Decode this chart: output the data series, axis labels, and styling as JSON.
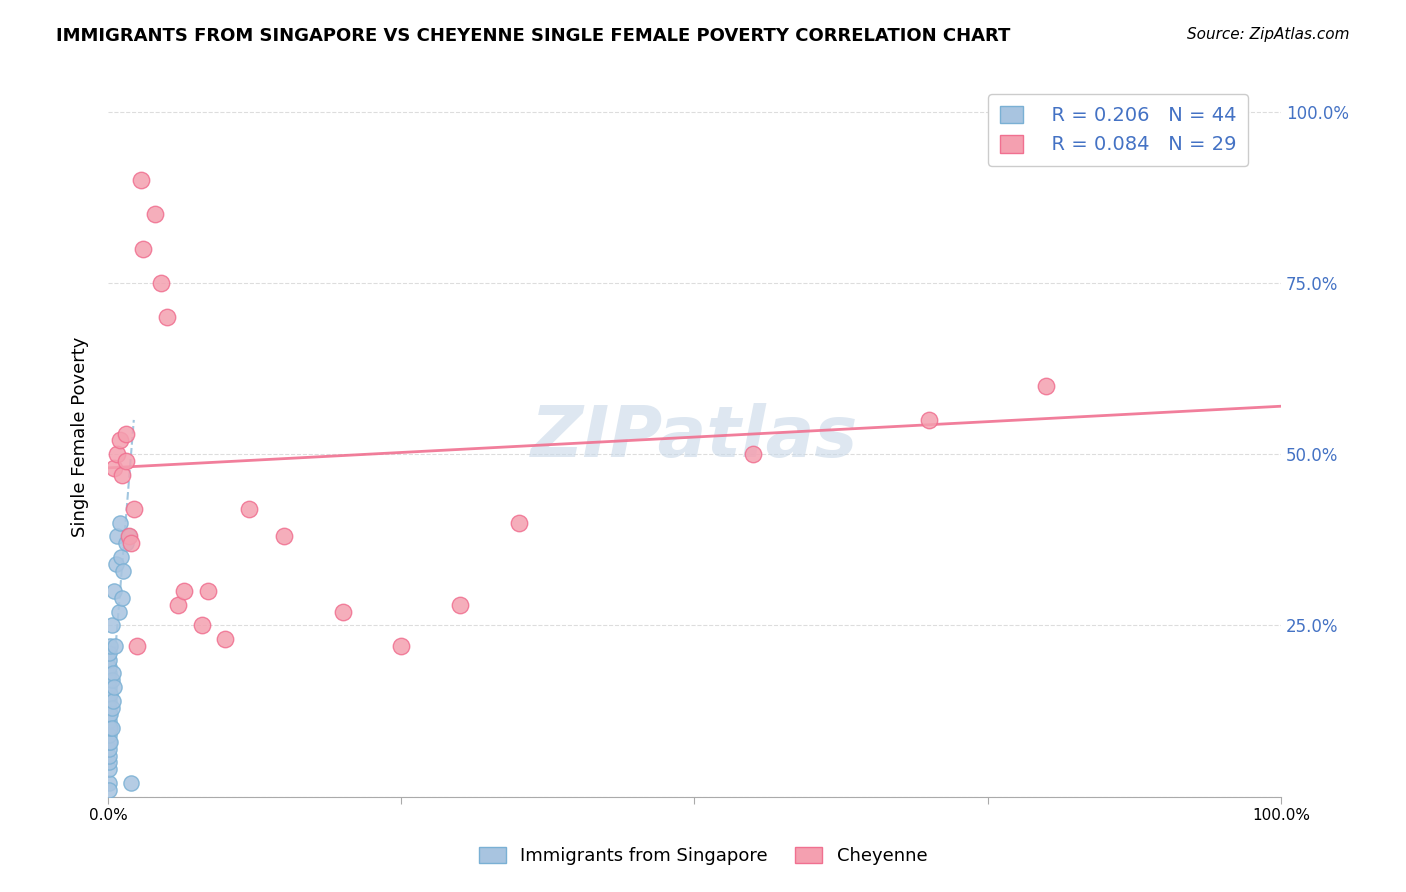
{
  "title": "IMMIGRANTS FROM SINGAPORE VS CHEYENNE SINGLE FEMALE POVERTY CORRELATION CHART",
  "source": "Source: ZipAtlas.com",
  "ylabel": "Single Female Poverty",
  "legend_blue_R": "R = 0.206",
  "legend_blue_N": "N = 44",
  "legend_pink_R": "R = 0.084",
  "legend_pink_N": "N = 29",
  "blue_color": "#a8c4e0",
  "pink_color": "#f4a0b0",
  "blue_edge_color": "#7ab0d4",
  "pink_edge_color": "#f07090",
  "blue_trend_color": "#8ab8d8",
  "pink_trend_color": "#f07090",
  "watermark": "ZIPatlas",
  "watermark_color": "#c8d8e8",
  "legend_text_color": "#4472c4",
  "right_axis_color": "#4472c4",
  "blue_points_x": [
    0.001,
    0.001,
    0.001,
    0.001,
    0.001,
    0.001,
    0.001,
    0.001,
    0.001,
    0.001,
    0.001,
    0.001,
    0.001,
    0.001,
    0.001,
    0.001,
    0.001,
    0.001,
    0.001,
    0.001,
    0.002,
    0.002,
    0.002,
    0.002,
    0.002,
    0.003,
    0.003,
    0.003,
    0.003,
    0.004,
    0.004,
    0.005,
    0.005,
    0.006,
    0.007,
    0.008,
    0.009,
    0.01,
    0.011,
    0.012,
    0.013,
    0.015,
    0.018,
    0.02
  ],
  "blue_points_y": [
    0.02,
    0.04,
    0.05,
    0.06,
    0.07,
    0.08,
    0.09,
    0.1,
    0.11,
    0.12,
    0.13,
    0.14,
    0.15,
    0.16,
    0.17,
    0.18,
    0.19,
    0.2,
    0.21,
    0.01,
    0.08,
    0.1,
    0.12,
    0.15,
    0.22,
    0.1,
    0.13,
    0.17,
    0.25,
    0.14,
    0.18,
    0.16,
    0.3,
    0.22,
    0.34,
    0.38,
    0.27,
    0.4,
    0.35,
    0.29,
    0.33,
    0.37,
    0.38,
    0.02
  ],
  "pink_points_x": [
    0.005,
    0.008,
    0.01,
    0.012,
    0.015,
    0.015,
    0.018,
    0.02,
    0.022,
    0.025,
    0.028,
    0.03,
    0.04,
    0.045,
    0.05,
    0.06,
    0.065,
    0.08,
    0.085,
    0.1,
    0.12,
    0.15,
    0.2,
    0.25,
    0.3,
    0.35,
    0.55,
    0.7,
    0.8
  ],
  "pink_points_y": [
    0.48,
    0.5,
    0.52,
    0.47,
    0.49,
    0.53,
    0.38,
    0.37,
    0.42,
    0.22,
    0.9,
    0.8,
    0.85,
    0.75,
    0.7,
    0.28,
    0.3,
    0.25,
    0.3,
    0.23,
    0.42,
    0.38,
    0.27,
    0.22,
    0.28,
    0.4,
    0.5,
    0.55,
    0.6
  ],
  "blue_trend_x": [
    0.0,
    0.022
  ],
  "blue_trend_y": [
    0.08,
    0.55
  ],
  "pink_trend_x": [
    0.0,
    1.0
  ],
  "pink_trend_y": [
    0.48,
    0.57
  ],
  "xlim": [
    0,
    1.0
  ],
  "ylim": [
    0,
    1.05
  ],
  "xticks": [
    0,
    0.25,
    0.5,
    0.75,
    1.0
  ],
  "xtick_labels": [
    "0.0%",
    "",
    "",
    "",
    "100.0%"
  ],
  "yticks": [
    0,
    0.25,
    0.5,
    0.75,
    1.0
  ],
  "ytick_labels_right": [
    "",
    "25.0%",
    "50.0%",
    "75.0%",
    "100.0%"
  ]
}
